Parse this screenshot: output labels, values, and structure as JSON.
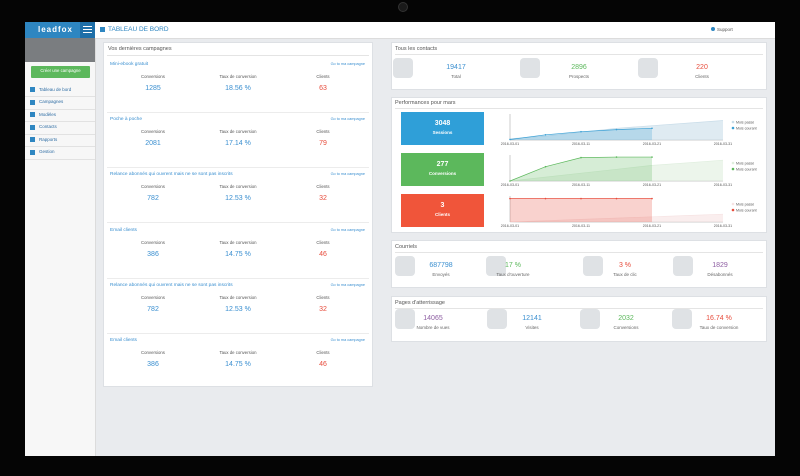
{
  "app": {
    "logo": "leadfox",
    "page_title": "TABLEAU DE BORD",
    "support": "Support"
  },
  "sidebar": {
    "button": "Créer une campagne",
    "menu": [
      "Tableau de bord",
      "Campagnes",
      "Modèles",
      "Contacts",
      "Rapports",
      "Gestion"
    ]
  },
  "campaigns": {
    "title": "Vos dernières campagnes",
    "link": "Go to ma campagne",
    "columns": [
      "Conversions",
      "Taux de conversion",
      "Clients"
    ],
    "items": [
      {
        "name": "Mini-ebook gratuit",
        "values": [
          1285,
          "18.56 %",
          63
        ]
      },
      {
        "name": "Poche à poche",
        "values": [
          2081,
          "17.14 %",
          79
        ]
      },
      {
        "name": "Relance abonnés qui ouvrent mais ne se sont pas inscrits",
        "values": [
          782,
          "12.53 %",
          32
        ]
      },
      {
        "name": "Email clients",
        "values": [
          386,
          "14.75 %",
          46
        ]
      },
      {
        "name": "Relance abonnés qui ouvrent mais ne se sont pas inscrits",
        "values": [
          782,
          "12.53 %",
          32
        ]
      },
      {
        "name": "Email clients",
        "values": [
          386,
          "14.75 %",
          46
        ]
      }
    ]
  },
  "contacts": {
    "title": "Tous les contacts",
    "stats": [
      {
        "value": 19417,
        "label": "Total",
        "color": "#3a8fd0"
      },
      {
        "value": 2896,
        "label": "Prospects",
        "color": "#5cb85c"
      },
      {
        "value": 220,
        "label": "Clients",
        "color": "#e74c3c"
      }
    ]
  },
  "performance": {
    "title": "Performances pour mars",
    "rows": [
      {
        "value": 3048,
        "label": "Sessions",
        "color": "#2f9fd8",
        "chart_data": {
          "type": "area",
          "x": [
            "2016-03-01",
            null,
            "2016-03-11",
            null,
            "2016-03-21",
            null,
            "2016-03-31"
          ],
          "ylim": [
            0,
            100
          ],
          "series": [
            {
              "name": "Mois passé",
              "color": "#c9dde9",
              "values": [
                5,
                15,
                30,
                45,
                55,
                65,
                75
              ]
            },
            {
              "name": "Mois courant",
              "color": "#3aa0d5",
              "values": [
                2,
                20,
                32,
                40,
                45,
                null,
                null
              ]
            }
          ]
        }
      },
      {
        "value": 277,
        "label": "Conversions",
        "color": "#5cb85c",
        "chart_data": {
          "type": "area",
          "x": [
            "2016-03-01",
            null,
            "2016-03-11",
            null,
            "2016-03-21",
            null,
            "2016-03-31"
          ],
          "ylim": [
            0,
            100
          ],
          "series": [
            {
              "name": "Mois passé",
              "color": "#dfeede",
              "values": [
                0,
                15,
                30,
                45,
                60,
                70,
                80
              ]
            },
            {
              "name": "Mois courant",
              "color": "#5cb85c",
              "values": [
                0,
                55,
                90,
                92,
                92,
                null,
                null
              ]
            }
          ]
        }
      },
      {
        "value": 3,
        "label": "Clients",
        "color": "#f0553a",
        "chart_data": {
          "type": "area",
          "x": [
            "2016-03-01",
            null,
            "2016-03-11",
            null,
            "2016-03-21",
            null,
            "2016-03-31"
          ],
          "ylim": [
            0,
            100
          ],
          "series": [
            {
              "name": "Mois passé",
              "color": "#f6e3e3",
              "values": [
                0,
                5,
                10,
                15,
                20,
                25,
                30
              ]
            },
            {
              "name": "Mois courant",
              "color": "#e74c3c",
              "values": [
                90,
                90,
                90,
                90,
                90,
                null,
                null
              ]
            }
          ]
        }
      }
    ]
  },
  "emails": {
    "title": "Courriels",
    "stats": [
      {
        "value": 687798,
        "label": "Envoyés",
        "color": "#3a8fd0"
      },
      {
        "value": "17 %",
        "label": "Taux d'ouverture",
        "color": "#5cb85c"
      },
      {
        "value": "3 %",
        "label": "Taux de clic",
        "color": "#e74c3c"
      },
      {
        "value": 1829,
        "label": "Désabonnés",
        "color": "#8e5ea2"
      }
    ]
  },
  "landing": {
    "title": "Pages d'atterrissage",
    "stats": [
      {
        "value": 14065,
        "label": "Nombre de vues",
        "color": "#8e5ea2"
      },
      {
        "value": 12141,
        "label": "Visites",
        "color": "#3a8fd0"
      },
      {
        "value": 2032,
        "label": "Conversions",
        "color": "#5cb85c"
      },
      {
        "value": "16.74 %",
        "label": "Taux de conversion",
        "color": "#e74c3c"
      }
    ]
  }
}
